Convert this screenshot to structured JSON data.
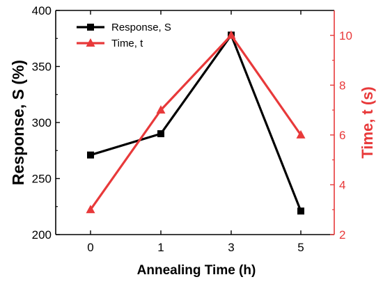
{
  "chart_data": {
    "type": "line",
    "categories": [
      "0",
      "1",
      "3",
      "5"
    ],
    "xlabel": "Annealing Time (h)",
    "y_left": {
      "label": "Response, S (%)",
      "ylim": [
        200,
        400
      ],
      "ticks": [
        200,
        250,
        300,
        350,
        400
      ],
      "color": "#000000"
    },
    "y_right": {
      "label": "Time, t (s)",
      "ylim": [
        2,
        11
      ],
      "ticks": [
        2,
        4,
        6,
        8,
        10
      ],
      "color": "#e8393a"
    },
    "series": [
      {
        "name": "Response, S",
        "axis": "left",
        "values": [
          271,
          290,
          378,
          221
        ],
        "color": "#000000",
        "marker": "square"
      },
      {
        "name": "Time, t",
        "axis": "right",
        "values": [
          3,
          7,
          10,
          6
        ],
        "color": "#e8393a",
        "marker": "triangle"
      }
    ],
    "legend": "top-left",
    "grid": false
  }
}
